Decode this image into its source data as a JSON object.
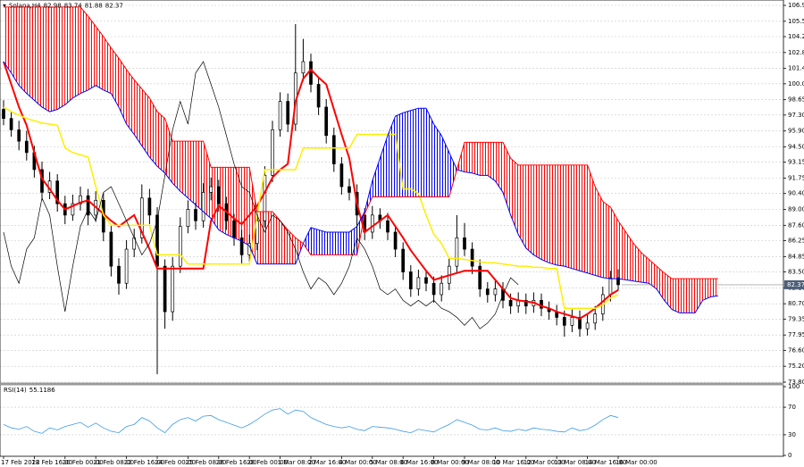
{
  "chart_data": {
    "type": "candlestick",
    "title": "Solana,H4",
    "candles": [
      [
        97.8,
        98.6,
        96.4,
        97.0
      ],
      [
        97.0,
        97.6,
        95.4,
        96.0
      ],
      [
        96.0,
        96.8,
        94.2,
        95.0
      ],
      [
        95.0,
        95.9,
        93.3,
        94.0
      ],
      [
        94.0,
        94.6,
        91.8,
        92.5
      ],
      [
        92.5,
        93.2,
        89.8,
        90.5
      ],
      [
        90.5,
        92.3,
        89.9,
        91.5
      ],
      [
        91.5,
        92.1,
        88.8,
        89.5
      ],
      [
        89.5,
        90.2,
        87.7,
        88.5
      ],
      [
        88.5,
        90.3,
        88.0,
        89.5
      ],
      [
        89.5,
        91.0,
        88.9,
        90.2
      ],
      [
        90.2,
        90.8,
        87.6,
        88.5
      ],
      [
        88.5,
        90.6,
        87.9,
        89.8
      ],
      [
        89.8,
        90.4,
        86.2,
        87.0
      ],
      [
        87.0,
        87.6,
        83.1,
        84.0
      ],
      [
        84.0,
        84.7,
        81.5,
        82.5
      ],
      [
        82.5,
        86.3,
        82.0,
        85.5
      ],
      [
        85.5,
        87.3,
        84.8,
        86.5
      ],
      [
        86.5,
        91.2,
        86.0,
        90.0
      ],
      [
        90.0,
        90.8,
        87.7,
        88.5
      ],
      [
        88.5,
        89.2,
        74.5,
        84.0
      ],
      [
        84.0,
        84.6,
        78.5,
        80.0
      ],
      [
        80.0,
        84.8,
        79.2,
        84.0
      ],
      [
        84.0,
        88.3,
        83.4,
        87.5
      ],
      [
        87.5,
        89.8,
        86.9,
        89.0
      ],
      [
        89.0,
        89.6,
        87.2,
        88.0
      ],
      [
        88.0,
        91.3,
        87.4,
        90.5
      ],
      [
        90.5,
        91.8,
        89.8,
        91.0
      ],
      [
        91.0,
        91.6,
        88.8,
        89.5
      ],
      [
        89.5,
        90.1,
        87.2,
        88.0
      ],
      [
        88.0,
        88.6,
        85.8,
        86.5
      ],
      [
        86.5,
        87.2,
        84.2,
        85.0
      ],
      [
        85.0,
        86.8,
        84.4,
        86.0
      ],
      [
        86.0,
        88.8,
        85.4,
        88.0
      ],
      [
        88.0,
        92.8,
        87.4,
        92.0
      ],
      [
        92.0,
        96.8,
        91.4,
        96.0
      ],
      [
        96.0,
        99.3,
        95.4,
        98.5
      ],
      [
        98.5,
        99.2,
        95.8,
        96.5
      ],
      [
        96.5,
        105.3,
        95.9,
        101.0
      ],
      [
        101.0,
        104.0,
        100.3,
        102.0
      ],
      [
        102.0,
        102.7,
        99.3,
        100.0
      ],
      [
        100.0,
        100.6,
        97.3,
        98.0
      ],
      [
        98.0,
        98.7,
        94.8,
        95.5
      ],
      [
        95.5,
        96.2,
        92.3,
        93.0
      ],
      [
        93.0,
        93.6,
        90.3,
        91.0
      ],
      [
        91.0,
        91.7,
        89.8,
        90.5
      ],
      [
        90.5,
        91.2,
        85.5,
        88.5
      ],
      [
        88.5,
        89.1,
        86.3,
        87.0
      ],
      [
        87.0,
        89.3,
        86.4,
        88.5
      ],
      [
        88.5,
        89.1,
        87.3,
        88.0
      ],
      [
        88.0,
        88.7,
        86.3,
        87.0
      ],
      [
        87.0,
        87.6,
        84.8,
        85.5
      ],
      [
        85.5,
        86.1,
        82.8,
        83.5
      ],
      [
        83.5,
        84.1,
        81.3,
        82.0
      ],
      [
        82.0,
        83.7,
        81.4,
        83.0
      ],
      [
        83.0,
        83.6,
        81.8,
        82.5
      ],
      [
        82.5,
        83.1,
        80.8,
        81.5
      ],
      [
        81.5,
        83.2,
        80.9,
        82.5
      ],
      [
        82.5,
        84.7,
        81.9,
        84.0
      ],
      [
        84.0,
        88.5,
        83.4,
        86.5
      ],
      [
        86.5,
        87.8,
        84.9,
        85.5
      ],
      [
        85.5,
        86.1,
        83.3,
        84.0
      ],
      [
        84.0,
        84.6,
        81.3,
        82.0
      ],
      [
        82.0,
        82.6,
        80.8,
        81.5
      ],
      [
        81.5,
        82.7,
        80.9,
        82.0
      ],
      [
        82.0,
        82.6,
        80.3,
        81.0
      ],
      [
        81.0,
        81.6,
        79.8,
        80.5
      ],
      [
        80.5,
        81.7,
        79.9,
        81.0
      ],
      [
        81.0,
        81.6,
        79.8,
        80.5
      ],
      [
        80.5,
        81.7,
        79.9,
        81.0
      ],
      [
        81.0,
        81.6,
        79.6,
        80.3
      ],
      [
        80.3,
        80.9,
        79.3,
        80.0
      ],
      [
        80.0,
        80.6,
        78.8,
        79.5
      ],
      [
        79.5,
        80.1,
        77.8,
        78.8
      ],
      [
        78.8,
        80.2,
        78.2,
        79.5
      ],
      [
        79.5,
        80.1,
        77.8,
        78.5
      ],
      [
        78.5,
        79.7,
        77.9,
        79.0
      ],
      [
        79.0,
        80.5,
        78.4,
        79.8
      ],
      [
        79.8,
        82.2,
        79.2,
        81.5
      ],
      [
        81.5,
        83.6,
        80.9,
        82.98
      ],
      [
        82.98,
        83.74,
        81.88,
        82.37
      ]
    ],
    "candle_color": "#000000",
    "series": [
      {
        "color": "#ff0000",
        "values": [
          102,
          100,
          98,
          96.4,
          94,
          91.7,
          90.8,
          89.8,
          89,
          89.3,
          89.6,
          89.8,
          89.2,
          88.6,
          88,
          87.5,
          88,
          88.5,
          87,
          85.5,
          83.8,
          83.8,
          83.8,
          83.8,
          83.8,
          83.8,
          83.8,
          88,
          89.3,
          88.8,
          88.2,
          87.7,
          88.5,
          89.3,
          90.5,
          91.8,
          92.5,
          93,
          98.5,
          100.5,
          101.3,
          100.6,
          100,
          97.8,
          95.6,
          93.5,
          89.5,
          87,
          87.5,
          88,
          88.5,
          87.5,
          86.5,
          85.4,
          84.5,
          83.6,
          82.8,
          83,
          83.2,
          83.4,
          83.6,
          83.6,
          83.6,
          83.6,
          82.8,
          82,
          81.2,
          81,
          80.9,
          80.8,
          80.5,
          80.3,
          80,
          79.8,
          79.6,
          79.4,
          79.8,
          80.3,
          80.9,
          81.5,
          81.9
        ]
      },
      {
        "color": "#ffee00",
        "values": [
          98,
          97.6,
          97.3,
          97,
          96.8,
          96.6,
          96.5,
          96.4,
          94.4,
          94,
          93.8,
          93.6,
          91,
          88.5,
          87.6,
          87.6,
          87.6,
          87.6,
          87.6,
          87.6,
          85,
          85,
          85,
          85,
          84.2,
          84.2,
          84.2,
          84.2,
          84.2,
          84.2,
          84.2,
          84.2,
          84.2,
          88.5,
          92.5,
          92.5,
          92.5,
          92.5,
          92.5,
          94.4,
          94.4,
          94.4,
          94.4,
          94.4,
          94.4,
          94.4,
          95.6,
          95.6,
          95.6,
          95.6,
          95.6,
          95.6,
          90.8,
          90.8,
          90.4,
          88.5,
          86.8,
          86,
          84.7,
          84.7,
          84.6,
          84.5,
          84.4,
          84.3,
          84.3,
          84.2,
          84.1,
          84,
          84,
          83.9,
          83.9,
          83.8,
          83.8,
          80.3,
          80.3,
          80.3,
          80.3,
          80.3,
          80.6,
          81.2,
          81.5
        ]
      },
      {
        "color": "#0000ff",
        "values": [
          102,
          101,
          99.9,
          99.2,
          98.6,
          98,
          97.6,
          97.8,
          98.2,
          98.8,
          99.2,
          99.5,
          99.9,
          99.5,
          99.2,
          98,
          96.5,
          95.6,
          94.6,
          93.6,
          92.8,
          92.2,
          91.3,
          90.6,
          90,
          89.4,
          88.8,
          88.2,
          87.2,
          86.8,
          86.5,
          86.2,
          85.8,
          84.2,
          84.2,
          84.2,
          84.2,
          84.2,
          84.2,
          86,
          87.4,
          87.2,
          87,
          87,
          87,
          87,
          87.5,
          88.8,
          91.5,
          93.5,
          95.5,
          97.2,
          97.5,
          97.7,
          97.9,
          97.9,
          96.5,
          95.5,
          94,
          92.5,
          92.3,
          92.2,
          92,
          92,
          91.5,
          90.5,
          88.5,
          86.8,
          85.6,
          85,
          84.6,
          84.3,
          84.1,
          84,
          83.8,
          83.6,
          83.4,
          83.2,
          83,
          82.9,
          82.9,
          82.8,
          82.7,
          82.6,
          82.5,
          82,
          81,
          80.2,
          79.9,
          79.9,
          79.9,
          81,
          81.3,
          81.4
        ]
      },
      {
        "color": "#ff0000",
        "values": [
          106.8,
          106.8,
          106.8,
          106.8,
          106.8,
          106.8,
          106.8,
          106.8,
          106.8,
          106.8,
          106.8,
          106,
          105.1,
          104.2,
          103.2,
          102.3,
          101.3,
          100.4,
          99.6,
          98.8,
          97.6,
          97,
          95,
          95,
          95,
          95,
          95,
          92.7,
          92.7,
          92.7,
          92.7,
          92.7,
          92.7,
          88.8,
          88.8,
          88.8,
          88,
          87.2,
          86.5,
          86,
          85,
          85,
          85,
          85,
          85,
          85,
          85,
          88.6,
          90.1,
          90.1,
          90.1,
          90.1,
          90.1,
          90.1,
          90.1,
          90.1,
          90.1,
          90.1,
          90.1,
          92.5,
          94.9,
          94.9,
          94.9,
          94.9,
          94.9,
          94.9,
          93.5,
          92.9,
          92.9,
          92.9,
          92.9,
          92.9,
          92.9,
          92.9,
          92.9,
          92.9,
          92.9,
          91,
          89.7,
          89.2,
          88,
          87,
          86,
          85.2,
          84.6,
          84,
          83.4,
          82.9,
          82.9,
          82.9,
          82.9,
          82.9,
          82.9,
          82.9
        ]
      },
      {
        "color": "#000000",
        "values": [
          87.0,
          84.0,
          82.5,
          85.5,
          86.5,
          90.0,
          88.5,
          84.0,
          80.0,
          84.0,
          87.5,
          89.0,
          88.0,
          90.5,
          91.0,
          89.5,
          88.0,
          86.5,
          85.0,
          86.0,
          88.0,
          92.0,
          96.0,
          98.5,
          96.5,
          101.0,
          102.0,
          100.0,
          98.0,
          95.5,
          93.0,
          91.0,
          90.5,
          88.5,
          87.0,
          88.5,
          88.0,
          87.0,
          85.5,
          83.5,
          82.0,
          83.0,
          82.5,
          81.5,
          82.5,
          84.0,
          86.5,
          85.5,
          84.0,
          82.0,
          81.5,
          82.0,
          81.0,
          80.5,
          81.0,
          80.5,
          81.0,
          80.3,
          80.0,
          79.5,
          78.8,
          79.5,
          78.5,
          79.0,
          79.8,
          81.5,
          82.98,
          82.37
        ]
      }
    ],
    "ylim": [
      73.8,
      106.95
    ],
    "yticks": [
      106.95,
      105.55,
      {
        "value": 104.2,
        "label": "104.20"
      },
      {
        "value": 102.8,
        "label": "102.80"
      },
      {
        "value": 101.4,
        "label": "101.40"
      },
      100.05,
      98.65,
      {
        "value": 97.3,
        "label": "97.30"
      },
      {
        "value": 95.9,
        "label": "95.90"
      },
      {
        "value": 94.5,
        "label": "94.50"
      },
      93.15,
      91.75,
      {
        "value": 90.4,
        "label": "90.40"
      },
      {
        "value": 89,
        "label": "89.00"
      },
      {
        "value": 87.6,
        "label": "87.60"
      },
      86.25,
      84.85,
      {
        "value": 83.5,
        "label": "83.50"
      },
      {
        "value": 82.1,
        "label": "82.10"
      },
      {
        "value": 80.7,
        "label": "80.70"
      },
      79.35,
      77.95,
      {
        "value": 76.6,
        "label": "76.60"
      },
      {
        "value": 75.2,
        "label": "75.20"
      },
      {
        "value": 73.8,
        "label": "73.80"
      }
    ],
    "grid": true,
    "x_labels": [
      "17 Feb 2022",
      "18 Feb 16:00",
      "20 Feb 00:00",
      "21 Feb 08:00",
      "22 Feb 16:00",
      "24 Feb 00:00",
      "25 Feb 08:00",
      "26 Feb 16:00",
      "28 Feb 00:00",
      "1 Mar 08:00",
      "2 Mar 16:00",
      "4 Mar 00:00",
      "5 Mar 08:00",
      "6 Mar 16:00",
      "8 Mar 00:00",
      "9 Mar 08:00",
      "10 Mar 16:00",
      "12 Mar 00:00",
      "13 Mar 08:00",
      "14 Mar 16:00",
      "16 Mar 00:00"
    ],
    "rsi": {
      "title": "RSI(14)",
      "color": "#3c9be8",
      "ylim": [
        0,
        100
      ],
      "yticks": [
        100,
        70,
        30,
        0
      ],
      "values": [
        45,
        40,
        38,
        42,
        35,
        32,
        40,
        37,
        42,
        45,
        48,
        41,
        47,
        40,
        35,
        33,
        42,
        45,
        55,
        50,
        40,
        33,
        45,
        52,
        55,
        50,
        57,
        58,
        52,
        48,
        44,
        40,
        45,
        52,
        60,
        66,
        68,
        60,
        66,
        64,
        55,
        50,
        45,
        42,
        40,
        42,
        38,
        36,
        42,
        41,
        40,
        38,
        35,
        33,
        38,
        36,
        34,
        40,
        45,
        52,
        48,
        44,
        38,
        37,
        40,
        36,
        35,
        38,
        36,
        40,
        38,
        37,
        35,
        34,
        40,
        36,
        38,
        44,
        52,
        58,
        55.1186
      ]
    }
  }
}
